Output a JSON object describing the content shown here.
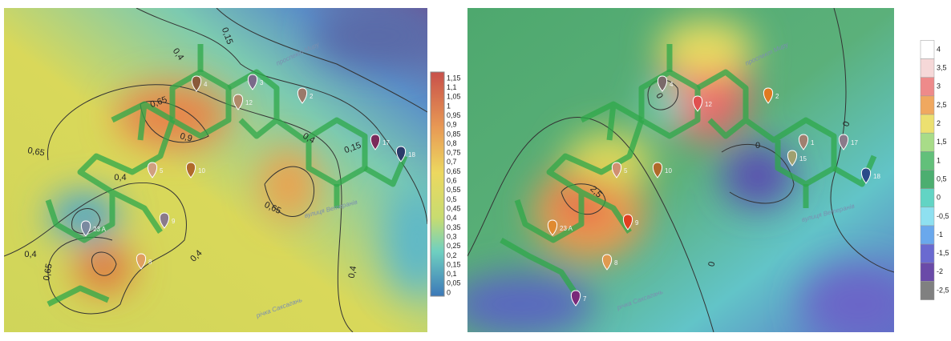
{
  "panels": [
    {
      "colorbar": {
        "labels": [
          "1,15",
          "1,1",
          "1,05",
          "1",
          "0,95",
          "0,9",
          "0,85",
          "0,8",
          "0,75",
          "0,7",
          "0,65",
          "0,6",
          "0,55",
          "0,5",
          "0,45",
          "0,4",
          "0,35",
          "0,3",
          "0,25",
          "0,2",
          "0,15",
          "0,1",
          "0,05",
          "0"
        ]
      },
      "contour_labels": [
        "0,4",
        "0,15",
        "0,65",
        "0,9",
        "0,65",
        "0,4",
        "0,4",
        "0,15",
        "0,65",
        "0,4",
        "0,4",
        "0,65",
        "0,4"
      ],
      "markers": [
        "4",
        "3",
        "12",
        "2",
        "5",
        "10",
        "9",
        "23 A",
        "8",
        "17",
        "18"
      ],
      "streets": [
        "проспект Миру",
        "вулиця Ветеранів",
        "річка Саксагань"
      ]
    },
    {
      "colorbar": {
        "labels": [
          "4",
          "3,5",
          "3",
          "2,5",
          "2",
          "1,5",
          "1",
          "0,5",
          "0",
          "-0,5",
          "-1",
          "-1,5",
          "-2",
          "-2,5"
        ]
      },
      "contour_labels": [
        "0",
        "2,5",
        "0",
        "0",
        "0"
      ],
      "markers": [
        "4",
        "12",
        "2",
        "1",
        "15",
        "17",
        "18",
        "5",
        "10",
        "9",
        "23 A",
        "8",
        "7"
      ],
      "streets": [
        "проспект Миру",
        "вулиця Ветеранів",
        "річка Саксагань"
      ]
    }
  ]
}
